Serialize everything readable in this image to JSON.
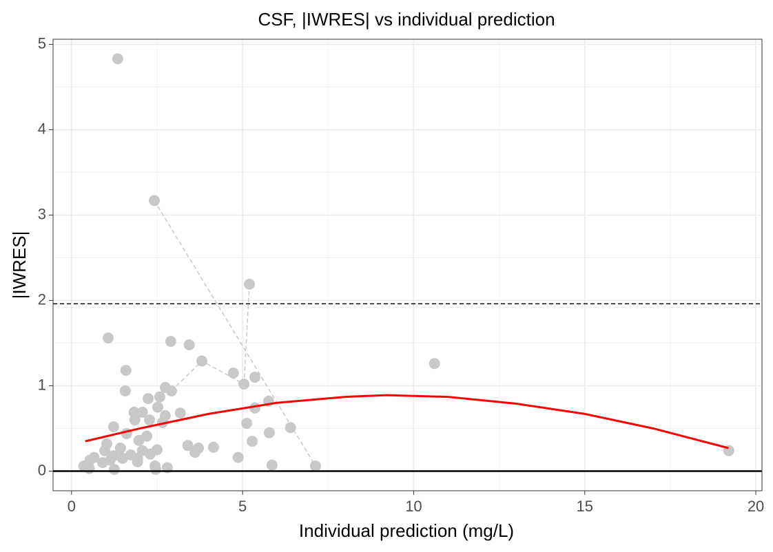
{
  "chart_data": {
    "type": "scatter",
    "title": "CSF, |IWRES| vs individual prediction",
    "x_label": "Individual prediction (mg/L)",
    "y_label": "|IWRES|",
    "xlim": [
      -0.54,
      20.18
    ],
    "ylim": [
      -0.23,
      5.06
    ],
    "xticks": [
      0,
      5,
      10,
      15,
      20
    ],
    "yticks": [
      0,
      1,
      2,
      3,
      4,
      5
    ],
    "xminor": [
      2.5,
      7.5,
      12.5,
      17.5
    ],
    "yminor": [
      0.5,
      1.5,
      2.5,
      3.5,
      4.5
    ],
    "grid": true,
    "point_color": "#c8c8c8",
    "x": [
      1.35,
      2.42,
      5.2,
      1.07,
      2.9,
      3.44,
      3.81,
      10.61,
      1.59,
      4.73,
      5.36,
      5.04,
      2.74,
      2.92,
      1.57,
      2.58,
      2.24,
      5.76,
      2.52,
      5.36,
      1.83,
      2.07,
      3.18,
      2.74,
      1.85,
      2.28,
      2.66,
      5.12,
      1.23,
      6.4,
      5.78,
      1.61,
      2.2,
      1.97,
      5.28,
      1.03,
      3.4,
      4.15,
      3.71,
      1.43,
      0.97,
      2.5,
      2.07,
      19.21,
      3.61,
      2.3,
      1.73,
      1.23,
      0.66,
      4.87,
      1.93,
      1.49,
      0.54,
      1.13,
      1.93,
      0.91,
      5.86,
      0.36,
      7.13,
      2.44,
      2.8,
      0.52,
      1.25,
      2.46
    ],
    "values": [
      4.83,
      3.17,
      2.19,
      1.56,
      1.52,
      1.48,
      1.29,
      1.26,
      1.18,
      1.15,
      1.1,
      1.02,
      0.98,
      0.94,
      0.94,
      0.87,
      0.85,
      0.82,
      0.75,
      0.74,
      0.69,
      0.69,
      0.68,
      0.65,
      0.6,
      0.6,
      0.57,
      0.56,
      0.52,
      0.51,
      0.45,
      0.44,
      0.41,
      0.36,
      0.35,
      0.32,
      0.3,
      0.28,
      0.27,
      0.27,
      0.24,
      0.25,
      0.24,
      0.24,
      0.22,
      0.2,
      0.19,
      0.18,
      0.16,
      0.16,
      0.15,
      0.15,
      0.13,
      0.13,
      0.11,
      0.1,
      0.07,
      0.06,
      0.06,
      0.06,
      0.04,
      0.03,
      0.02,
      0.02
    ],
    "connections": [
      {
        "x": [
          2.42,
          7.13
        ],
        "values": [
          3.17,
          0.06
        ]
      },
      {
        "x": [
          5.2,
          5.04
        ],
        "values": [
          2.19,
          1.02
        ]
      },
      {
        "x": [
          2.92,
          3.81,
          5.04
        ],
        "values": [
          0.94,
          1.29,
          1.02
        ]
      }
    ],
    "connection_color": "#c8c8c8",
    "smooth": {
      "color": "#ff0000",
      "x": [
        0.4,
        2,
        4,
        6,
        8,
        9.2,
        11,
        13,
        15,
        17,
        19.2
      ],
      "values": [
        0.35,
        0.5,
        0.67,
        0.8,
        0.87,
        0.89,
        0.87,
        0.79,
        0.67,
        0.5,
        0.27
      ]
    },
    "hlines": [
      {
        "value": 1.96,
        "dashed": true
      },
      {
        "value": 0,
        "dashed": false
      }
    ]
  }
}
